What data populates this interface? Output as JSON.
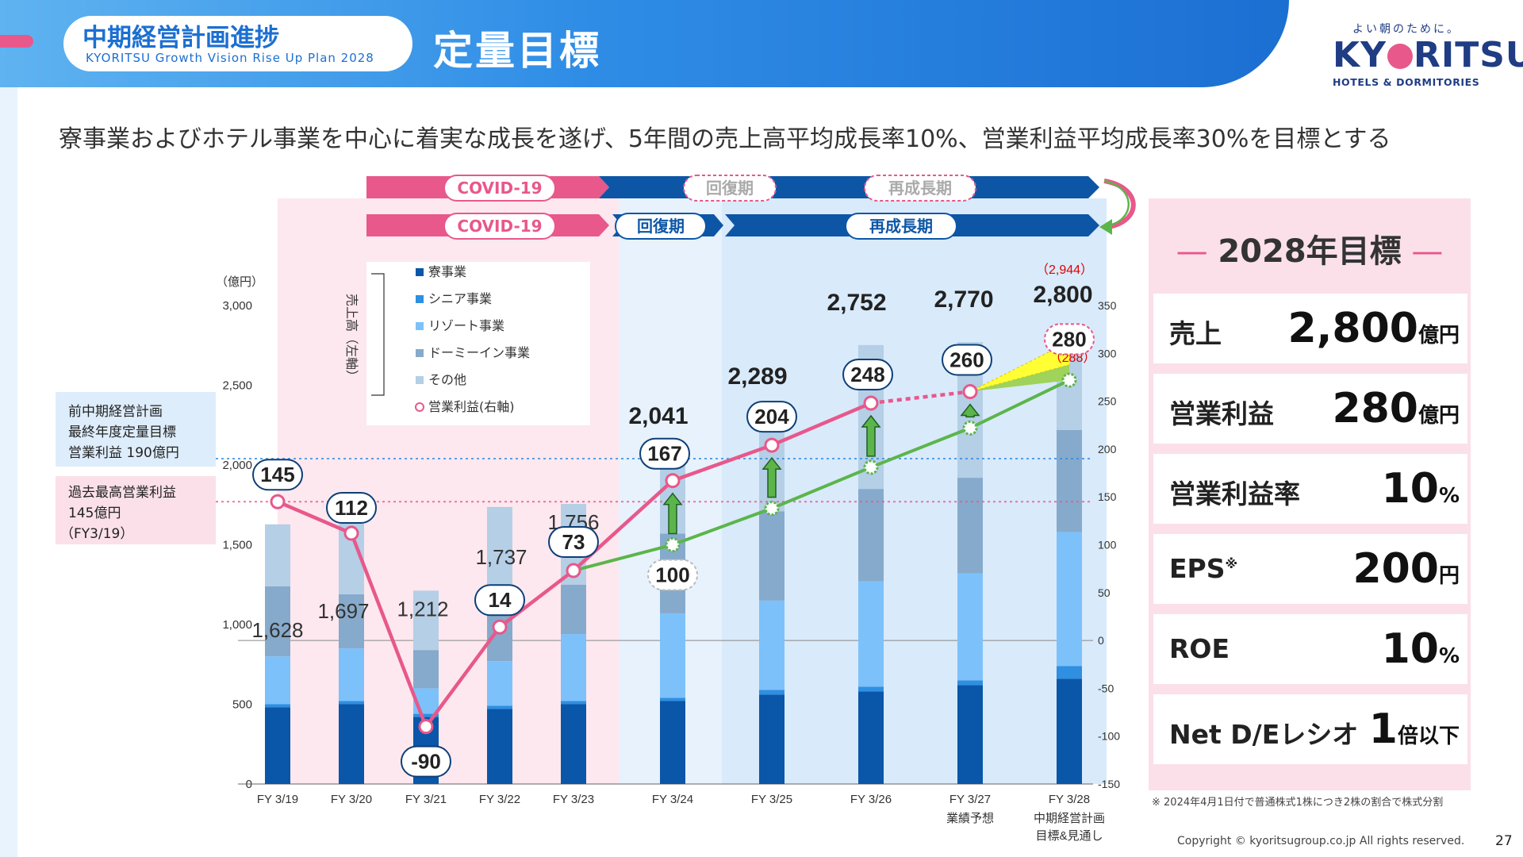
{
  "header": {
    "plan_title": "中期経営計画進捗",
    "plan_subtitle": "KYORITSU Growth Vision Rise Up Plan 2028",
    "page_title": "定量目標",
    "logo_tagline": "よい朝のために。",
    "logo_name": "KYORITSU",
    "logo_sub": "HOTELS & DORMITORIES"
  },
  "lead_text": "寮事業およびホテル事業を中心に着実な成長を遂げ、5年間の売上高平均成長率10%、営業利益平均成長率30%を目標とする",
  "phases": {
    "row1": {
      "covid": "COVID-19",
      "recovery": "回復期",
      "regrowth": "再成長期"
    },
    "row2": {
      "covid": "COVID-19",
      "recovery": "回復期",
      "regrowth": "再成長期"
    }
  },
  "side_notes": {
    "previous_target": [
      "前中期経営計画",
      "最終年度定量目標",
      "営業利益 190億円"
    ],
    "past_record": [
      "過去最高営業利益",
      "145億円",
      "（FY3/19）"
    ]
  },
  "target": {
    "title": "2028年目標",
    "rows": [
      {
        "label": "売上",
        "value": "2,800",
        "unit": "億円"
      },
      {
        "label": "営業利益",
        "value": "280",
        "unit": "億円"
      },
      {
        "label": "営業利益率",
        "value": "10",
        "unit": "%"
      },
      {
        "label": "EPS",
        "label_note": "※",
        "value": "200",
        "unit": "円"
      },
      {
        "label": "ROE",
        "value": "10",
        "unit": "%"
      },
      {
        "label": "Net D/Eレシオ",
        "value": "1",
        "unit": "倍以下"
      }
    ]
  },
  "footnote": "※ 2024年4月1日付で普通株式1株につき2株の割合で株式分割",
  "copyright": "Copyright © kyoritsugroup.co.jp All rights reserved.",
  "page_number": "27",
  "colors": {
    "dorm": "#0a56a8",
    "senior": "#2f8fe0",
    "resort": "#7dc1fa",
    "dormy_inn": "#86aacb",
    "other": "#b4cfe6",
    "operating_profit": "#e8588b",
    "plan_line": "#5cb54a",
    "header_blue": "#1c6fd2",
    "pink_panel": "#fbe0ea"
  },
  "chart_data": {
    "type": "bar",
    "left_unit": "（億円）",
    "left_axis_label": "売上高（左軸）",
    "ylim_left": [
      0,
      3000
    ],
    "yticks_left": [
      "0",
      "500",
      "1,000",
      "1,500",
      "2,000",
      "2,500",
      "3,000"
    ],
    "ylim_right": [
      -150,
      350
    ],
    "yticks_right": [
      "-150",
      "-100",
      "-50",
      "0",
      "50",
      "100",
      "150",
      "200",
      "250",
      "300",
      "350"
    ],
    "categories": [
      "FY 3/19",
      "FY 3/20",
      "FY 3/21",
      "FY 3/22",
      "FY 3/23",
      "FY 3/24",
      "FY 3/25",
      "FY 3/26",
      "FY 3/27",
      "FY 3/28"
    ],
    "category_sublabels": [
      "",
      "",
      "",
      "",
      "",
      "",
      "",
      "",
      "業績予想",
      "中期経営計画\n目標&見通し"
    ],
    "sales_totals": [
      1628,
      1697,
      1212,
      1737,
      1756,
      2041,
      2289,
      2752,
      2770,
      2800
    ],
    "sales_total_labels": [
      "1,628",
      "1,697",
      "1,212",
      "1,737",
      "1,756",
      "2,041",
      "2,289",
      "2,752",
      "2,770",
      "2,800"
    ],
    "sales_extra_label": {
      "category": "FY 3/28",
      "value": 2944,
      "text": "（2,944）"
    },
    "series": [
      {
        "name": "寮事業",
        "values": [
          480,
          500,
          420,
          470,
          500,
          520,
          560,
          580,
          620,
          660
        ]
      },
      {
        "name": "シニア事業",
        "values": [
          20,
          20,
          20,
          20,
          20,
          20,
          30,
          30,
          30,
          80
        ]
      },
      {
        "name": "リゾート事業",
        "values": [
          300,
          330,
          160,
          280,
          420,
          530,
          560,
          660,
          670,
          840
        ]
      },
      {
        "name": "ドーミーイン事業",
        "values": [
          440,
          340,
          240,
          370,
          310,
          500,
          560,
          580,
          600,
          640
        ]
      },
      {
        "name": "その他",
        "values": [
          388,
          507,
          372,
          597,
          506,
          471,
          579,
          902,
          850,
          580
        ]
      }
    ],
    "operating_profit": {
      "name": "営業利益(右軸)",
      "values": [
        145,
        112,
        -90,
        14,
        73,
        167,
        204,
        248,
        260,
        280
      ],
      "labels": [
        "145",
        "112",
        "-90",
        "14",
        "73",
        "167",
        "204",
        "248",
        "260",
        "280"
      ]
    },
    "plan_line": {
      "categories": [
        "FY 3/23",
        "FY 3/24",
        "FY 3/25",
        "FY 3/26",
        "FY 3/27",
        "FY 3/28"
      ],
      "values": [
        73,
        100,
        138,
        181,
        222,
        272
      ],
      "label": {
        "category": "FY 3/24",
        "text": "100"
      }
    },
    "upside": {
      "category": "FY 3/28",
      "high": {
        "value": 312,
        "text": "（312）"
      },
      "low": {
        "value": 288,
        "text": "（288）"
      }
    },
    "reference_lines": [
      {
        "value": 190,
        "axis": "right"
      },
      {
        "value": 145,
        "axis": "right"
      }
    ],
    "legend_placement": "top-left"
  }
}
